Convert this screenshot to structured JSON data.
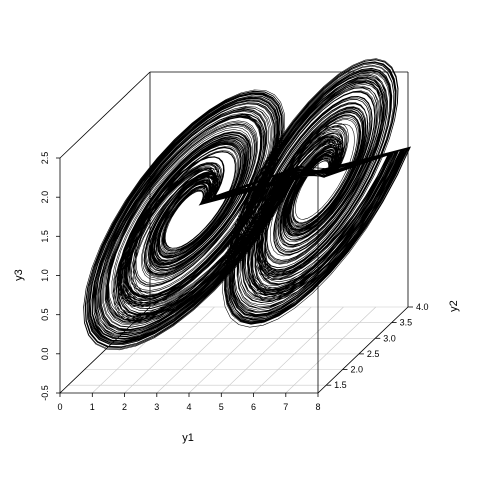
{
  "chart_data": {
    "type": "scatter3d",
    "render": "line",
    "title": "",
    "xlabel": "y1",
    "ylabel": "y2",
    "zlabel": "y3",
    "xlim": [
      0,
      8
    ],
    "ylim": [
      1.25,
      4.0
    ],
    "zlim": [
      -0.5,
      2.5
    ],
    "x_ticks": [
      "0",
      "1",
      "2",
      "3",
      "4",
      "5",
      "6",
      "7",
      "8"
    ],
    "y_ticks": [
      "1.5",
      "2.0",
      "2.5",
      "3.0",
      "3.5",
      "4.0"
    ],
    "z_ticks": [
      "-0.5",
      "0.0",
      "0.5",
      "1.0",
      "1.5",
      "2.0",
      "2.5"
    ],
    "grid": true,
    "box": true,
    "color": "#000000",
    "grid_color": "#c8c8c8"
  }
}
